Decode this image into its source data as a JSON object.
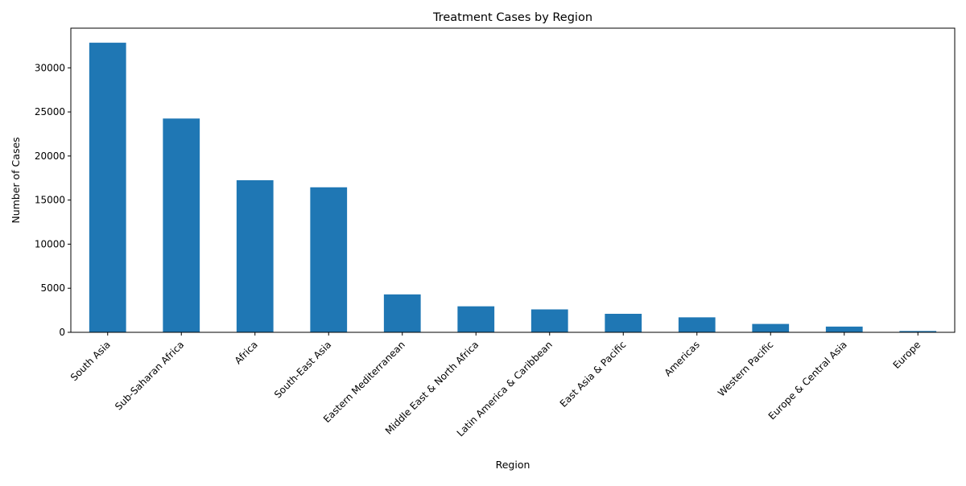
{
  "chart_data": {
    "type": "bar",
    "title": "Treatment Cases by Region",
    "xlabel": "Region",
    "ylabel": "Number of Cases",
    "ylim": [
      0,
      34500
    ],
    "yticks": [
      0,
      5000,
      10000,
      15000,
      20000,
      25000,
      30000
    ],
    "grid": false,
    "legend": "none",
    "bar_color": "#1f77b4",
    "categories": [
      "South Asia",
      "Sub-Saharan Africa",
      "Africa",
      "South-East Asia",
      "Eastern Mediterranean",
      "Middle East & North Africa",
      "Latin America & Caribbean",
      "East Asia & Pacific",
      "Americas",
      "Western Pacific",
      "Europe & Central Asia",
      "Europe"
    ],
    "values": [
      32850,
      24250,
      17250,
      16450,
      4300,
      2950,
      2600,
      2100,
      1700,
      950,
      650,
      150
    ]
  }
}
